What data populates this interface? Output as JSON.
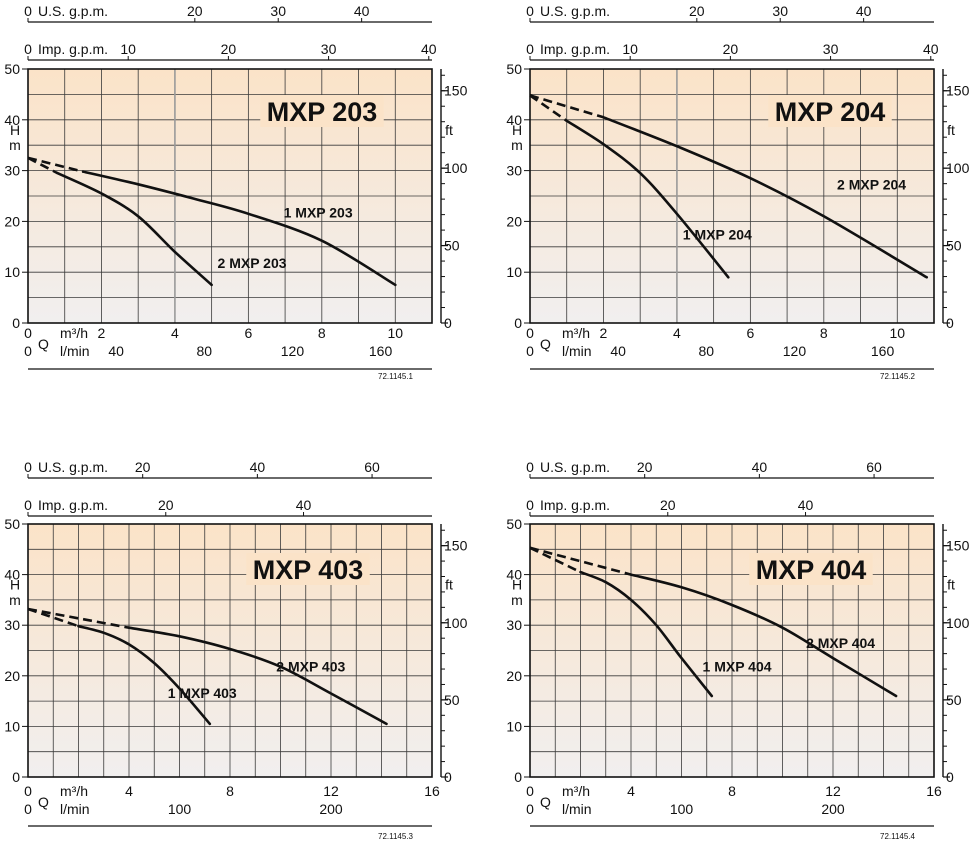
{
  "chart_data": [
    {
      "type": "line",
      "title": "MXP 203",
      "code": "72.1145.1",
      "top_axes": [
        {
          "unit": "U.S. g.p.m.",
          "ticks": [
            0,
            20,
            30,
            40
          ],
          "labels": [
            "0",
            "20",
            "30",
            "40"
          ]
        },
        {
          "unit": "Imp. g.p.m.",
          "ticks": [
            0,
            10,
            20,
            30,
            40
          ],
          "labels": [
            "0",
            "10",
            "20",
            "30",
            "40"
          ]
        }
      ],
      "bottom_axes": [
        {
          "unit": "m³/h",
          "ticks": [
            0,
            2,
            4,
            6,
            8,
            10
          ],
          "labels": [
            "0",
            "2",
            "4",
            "6",
            "8",
            "10"
          ]
        },
        {
          "unit": "l/min",
          "ticks": [
            0,
            40,
            80,
            120,
            160
          ],
          "labels": [
            "0",
            "40",
            "80",
            "120",
            "160"
          ]
        }
      ],
      "x_axis_symbol": "Q",
      "xlim": [
        0,
        11
      ],
      "ylabel": "H m",
      "ylim": [
        0,
        50
      ],
      "yticks": [
        0,
        10,
        20,
        30,
        40,
        50
      ],
      "y2_unit": "ft",
      "y2_ticks": [
        0,
        50,
        100,
        150
      ],
      "series": [
        {
          "name": "1 MXP 203",
          "label_at": [
            7.9,
            21.8
          ],
          "dashed": [
            [
              0,
              32.5
            ],
            [
              1.5,
              29.8
            ]
          ],
          "solid": [
            [
              1.5,
              29.8
            ],
            [
              3,
              27.3
            ],
            [
              4.5,
              24.5
            ],
            [
              6,
              21.5
            ],
            [
              8,
              16.2
            ],
            [
              10,
              7.5
            ]
          ]
        },
        {
          "name": "2 MXP 203",
          "label_at": [
            6.1,
            11.8
          ],
          "dashed": [
            [
              0,
              32.5
            ],
            [
              0.8,
              29.5
            ]
          ],
          "solid": [
            [
              0.8,
              29.5
            ],
            [
              2,
              25.5
            ],
            [
              3,
              21
            ],
            [
              4,
              14
            ],
            [
              5,
              7.5
            ]
          ]
        }
      ]
    },
    {
      "type": "line",
      "title": "MXP 204",
      "code": "72.1145.2",
      "top_axes": [
        {
          "unit": "U.S. g.p.m.",
          "ticks": [
            0,
            20,
            30,
            40
          ],
          "labels": [
            "0",
            "20",
            "30",
            "40"
          ]
        },
        {
          "unit": "Imp. g.p.m.",
          "ticks": [
            0,
            10,
            20,
            30,
            40
          ],
          "labels": [
            "0",
            "10",
            "20",
            "30",
            "40"
          ]
        }
      ],
      "bottom_axes": [
        {
          "unit": "m³/h",
          "ticks": [
            0,
            2,
            4,
            6,
            8,
            10
          ],
          "labels": [
            "0",
            "2",
            "4",
            "6",
            "8",
            "10"
          ]
        },
        {
          "unit": "l/min",
          "ticks": [
            0,
            40,
            80,
            120,
            160
          ],
          "labels": [
            "0",
            "40",
            "80",
            "120",
            "160"
          ]
        }
      ],
      "x_axis_symbol": "Q",
      "xlim": [
        0,
        11
      ],
      "ylabel": "H m",
      "ylim": [
        0,
        50
      ],
      "yticks": [
        0,
        10,
        20,
        30,
        40,
        50
      ],
      "y2_unit": "ft",
      "y2_ticks": [
        0,
        50,
        100,
        150
      ],
      "series": [
        {
          "name": "2 MXP 204",
          "label_at": [
            9.3,
            27.3
          ],
          "dashed": [
            [
              0,
              44.8
            ],
            [
              2,
              40.5
            ]
          ],
          "solid": [
            [
              2,
              40.5
            ],
            [
              4,
              34.8
            ],
            [
              6,
              28.5
            ],
            [
              8,
              21
            ],
            [
              10.8,
              9
            ]
          ]
        },
        {
          "name": "1 MXP 204",
          "label_at": [
            5.1,
            17.4
          ],
          "dashed": [
            [
              0,
              44.8
            ],
            [
              1,
              39.8
            ]
          ],
          "solid": [
            [
              1,
              39.8
            ],
            [
              2,
              35.2
            ],
            [
              3,
              29.5
            ],
            [
              4,
              21.5
            ],
            [
              5.4,
              9
            ]
          ]
        }
      ]
    },
    {
      "type": "line",
      "title": "MXP 403",
      "code": "72.1145.3",
      "top_axes": [
        {
          "unit": "U.S. g.p.m.",
          "ticks": [
            0,
            20,
            40,
            60
          ],
          "labels": [
            "0",
            "20",
            "40",
            "60"
          ]
        },
        {
          "unit": "Imp. g.p.m.",
          "ticks": [
            0,
            20,
            40
          ],
          "labels": [
            "0",
            "20",
            "40"
          ]
        }
      ],
      "bottom_axes": [
        {
          "unit": "m³/h",
          "ticks": [
            0,
            4,
            8,
            12,
            16
          ],
          "labels": [
            "0",
            "4",
            "8",
            "12",
            "16"
          ]
        },
        {
          "unit": "l/min",
          "ticks": [
            0,
            100,
            200
          ],
          "labels": [
            "0",
            "100",
            "200"
          ]
        }
      ],
      "x_axis_symbol": "Q",
      "xlim": [
        0,
        16
      ],
      "ylabel": "H m",
      "ylim": [
        0,
        50
      ],
      "yticks": [
        0,
        10,
        20,
        30,
        40,
        50
      ],
      "y2_unit": "ft",
      "y2_ticks": [
        0,
        50,
        100,
        150
      ],
      "series": [
        {
          "name": "2 MXP 403",
          "label_at": [
            11.2,
            21.8
          ],
          "dashed": [
            [
              0,
              33.2
            ],
            [
              4,
              29.5
            ]
          ],
          "solid": [
            [
              4,
              29.5
            ],
            [
              6,
              27.8
            ],
            [
              8,
              25.3
            ],
            [
              10,
              21.8
            ],
            [
              12,
              16.5
            ],
            [
              14.2,
              10.5
            ]
          ]
        },
        {
          "name": "1 MXP 403",
          "label_at": [
            6.9,
            16.6
          ],
          "dashed": [
            [
              0,
              33.2
            ],
            [
              2,
              29.8
            ]
          ],
          "solid": [
            [
              2,
              29.8
            ],
            [
              3,
              28.5
            ],
            [
              4,
              26.2
            ],
            [
              5,
              22.5
            ],
            [
              6,
              17.5
            ],
            [
              7.2,
              10.5
            ]
          ]
        }
      ]
    },
    {
      "type": "line",
      "title": "MXP 404",
      "code": "72.1145.4",
      "top_axes": [
        {
          "unit": "U.S. g.p.m.",
          "ticks": [
            0,
            20,
            40,
            60
          ],
          "labels": [
            "0",
            "20",
            "40",
            "60"
          ]
        },
        {
          "unit": "Imp. g.p.m.",
          "ticks": [
            0,
            20,
            40
          ],
          "labels": [
            "0",
            "20",
            "40"
          ]
        }
      ],
      "bottom_axes": [
        {
          "unit": "m³/h",
          "ticks": [
            0,
            4,
            8,
            12,
            16
          ],
          "labels": [
            "0",
            "4",
            "8",
            "12",
            "16"
          ]
        },
        {
          "unit": "l/min",
          "ticks": [
            0,
            100,
            200
          ],
          "labels": [
            "0",
            "100",
            "200"
          ]
        }
      ],
      "x_axis_symbol": "Q",
      "xlim": [
        0,
        16
      ],
      "ylabel": "H m",
      "ylim": [
        0,
        50
      ],
      "yticks": [
        0,
        10,
        20,
        30,
        40,
        50
      ],
      "y2_unit": "ft",
      "y2_ticks": [
        0,
        50,
        100,
        150
      ],
      "series": [
        {
          "name": "2 MXP 404",
          "label_at": [
            12.3,
            26.5
          ],
          "dashed": [
            [
              0,
              45.3
            ],
            [
              4,
              40
            ]
          ],
          "solid": [
            [
              4,
              40
            ],
            [
              6,
              37.5
            ],
            [
              8,
              34
            ],
            [
              10,
              29.5
            ],
            [
              12,
              23.5
            ],
            [
              14.5,
              16
            ]
          ]
        },
        {
          "name": "1 MXP 404",
          "label_at": [
            8.2,
            21.8
          ],
          "dashed": [
            [
              0,
              45.3
            ],
            [
              2,
              40.5
            ]
          ],
          "solid": [
            [
              2,
              40.5
            ],
            [
              3,
              38.5
            ],
            [
              4,
              35
            ],
            [
              5,
              30
            ],
            [
              6,
              23.5
            ],
            [
              7.2,
              16
            ]
          ]
        }
      ]
    }
  ],
  "colors": {
    "plot_top": "#fbe3c8",
    "plot_bottom": "#f1efef",
    "grid": "#3a3a3a",
    "curve": "#111111",
    "marker_line": "#9a9a9a"
  }
}
